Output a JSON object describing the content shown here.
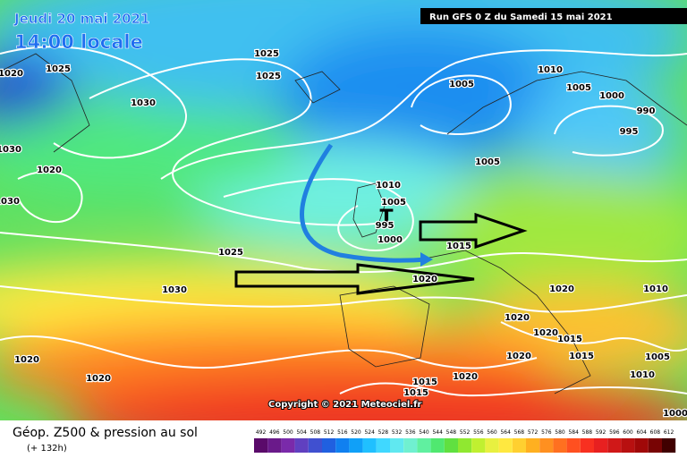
{
  "header": {
    "date": "Jeudi 20 mai 2021",
    "time": "14:00 locale",
    "run": "Run GFS 0 Z du Samedi 15 mai 2021"
  },
  "copyright": "Copyright © 2021 Meteociel.fr",
  "low_marker": "T",
  "isobar_labels": [
    "1025",
    "1020",
    "1030",
    "1025",
    "1025",
    "1010",
    "1005",
    "1005",
    "1000",
    "990",
    "995",
    "1005",
    "1030",
    "1020",
    "1030",
    "1010",
    "1005",
    "995",
    "1000",
    "1015",
    "1025",
    "1030",
    "1020",
    "1020",
    "1010",
    "1020",
    "1020",
    "1015",
    "1020",
    "1015",
    "1005",
    "1020",
    "1020",
    "1015",
    "1020",
    "1015",
    "1010",
    "1000"
  ],
  "footer": {
    "title": "Géop. Z500 & pression au sol",
    "lead": "(+ 132h)"
  },
  "legend": {
    "labels": [
      492,
      496,
      500,
      504,
      508,
      512,
      516,
      520,
      524,
      528,
      532,
      536,
      540,
      544,
      548,
      552,
      556,
      560,
      564,
      568,
      572,
      576,
      580,
      584,
      588,
      592,
      596,
      600,
      604,
      608,
      612
    ],
    "colors": [
      "#5a0a6a",
      "#6a1a8a",
      "#7a2aaa",
      "#6040c0",
      "#4050d0",
      "#2060e0",
      "#1080f0",
      "#10a0f8",
      "#20c0ff",
      "#40d8ff",
      "#60e8f0",
      "#70f0d0",
      "#60f0a0",
      "#50e870",
      "#60e040",
      "#90e830",
      "#c0f030",
      "#e8f040",
      "#ffe840",
      "#ffd030",
      "#ffb020",
      "#ff9020",
      "#ff7020",
      "#ff5020",
      "#f83020",
      "#e82020",
      "#d01818",
      "#b81010",
      "#a00808",
      "#780404",
      "#400000"
    ]
  }
}
